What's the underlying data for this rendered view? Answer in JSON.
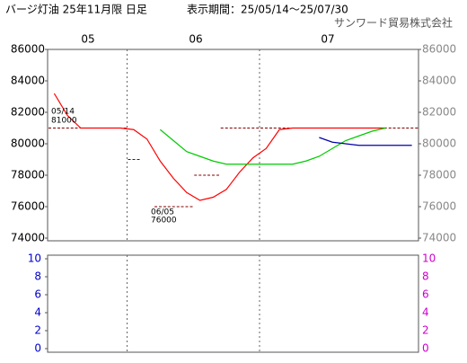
{
  "chart_data": {
    "type": "line",
    "title": "バージ灯油 25年11月限 日足",
    "subtitle": "表示期間：25/05/14～25/07/30",
    "source": "サンワード貿易株式会社",
    "months": [
      "05",
      "06",
      "07"
    ],
    "ylim": [
      74000,
      86000
    ],
    "yticks": [
      74000,
      76000,
      78000,
      80000,
      82000,
      84000,
      86000
    ],
    "prices": {
      "color": "#800000",
      "values": [
        81000,
        81000,
        81000,
        81000,
        81000,
        81000,
        79000,
        null,
        76000,
        76000,
        76000,
        78000,
        78000,
        81000,
        81000,
        81000,
        81000,
        81000,
        81000,
        81000,
        81000,
        81000,
        81000,
        81000,
        81000,
        81000,
        81000,
        81000
      ]
    },
    "series": [
      {
        "color": "#ff0000",
        "values": [
          83200,
          81800,
          81000,
          81000,
          81000,
          81000,
          80900,
          80300,
          78900,
          77800,
          76900,
          76400,
          76600,
          77100,
          78200,
          79100,
          79700,
          80900,
          81000,
          81000,
          81000,
          81000,
          81000,
          81000,
          81000,
          81000,
          null,
          null
        ]
      },
      {
        "color": "#00cc00",
        "values": [
          null,
          null,
          null,
          null,
          null,
          null,
          null,
          null,
          80900,
          80200,
          79500,
          79200,
          78900,
          78700,
          78700,
          78700,
          78700,
          78700,
          78700,
          78900,
          79200,
          79700,
          80200,
          80500,
          80800,
          81000,
          null,
          null
        ]
      },
      {
        "color": "#0000aa",
        "values": [
          null,
          null,
          null,
          null,
          null,
          null,
          null,
          null,
          null,
          null,
          null,
          null,
          null,
          null,
          null,
          null,
          null,
          null,
          null,
          null,
          80400,
          80100,
          80000,
          79900,
          79900,
          79900,
          79900,
          79900
        ]
      }
    ],
    "annotations": [
      {
        "date": "05/14",
        "value": 81000
      },
      {
        "date": "06/05",
        "value": 76000
      }
    ],
    "lower": {
      "ylim": [
        0,
        10
      ],
      "yticks": [
        0,
        2,
        4,
        6,
        8,
        10
      ],
      "left_color": "#0000cc",
      "right_color": "#cc00cc"
    }
  }
}
